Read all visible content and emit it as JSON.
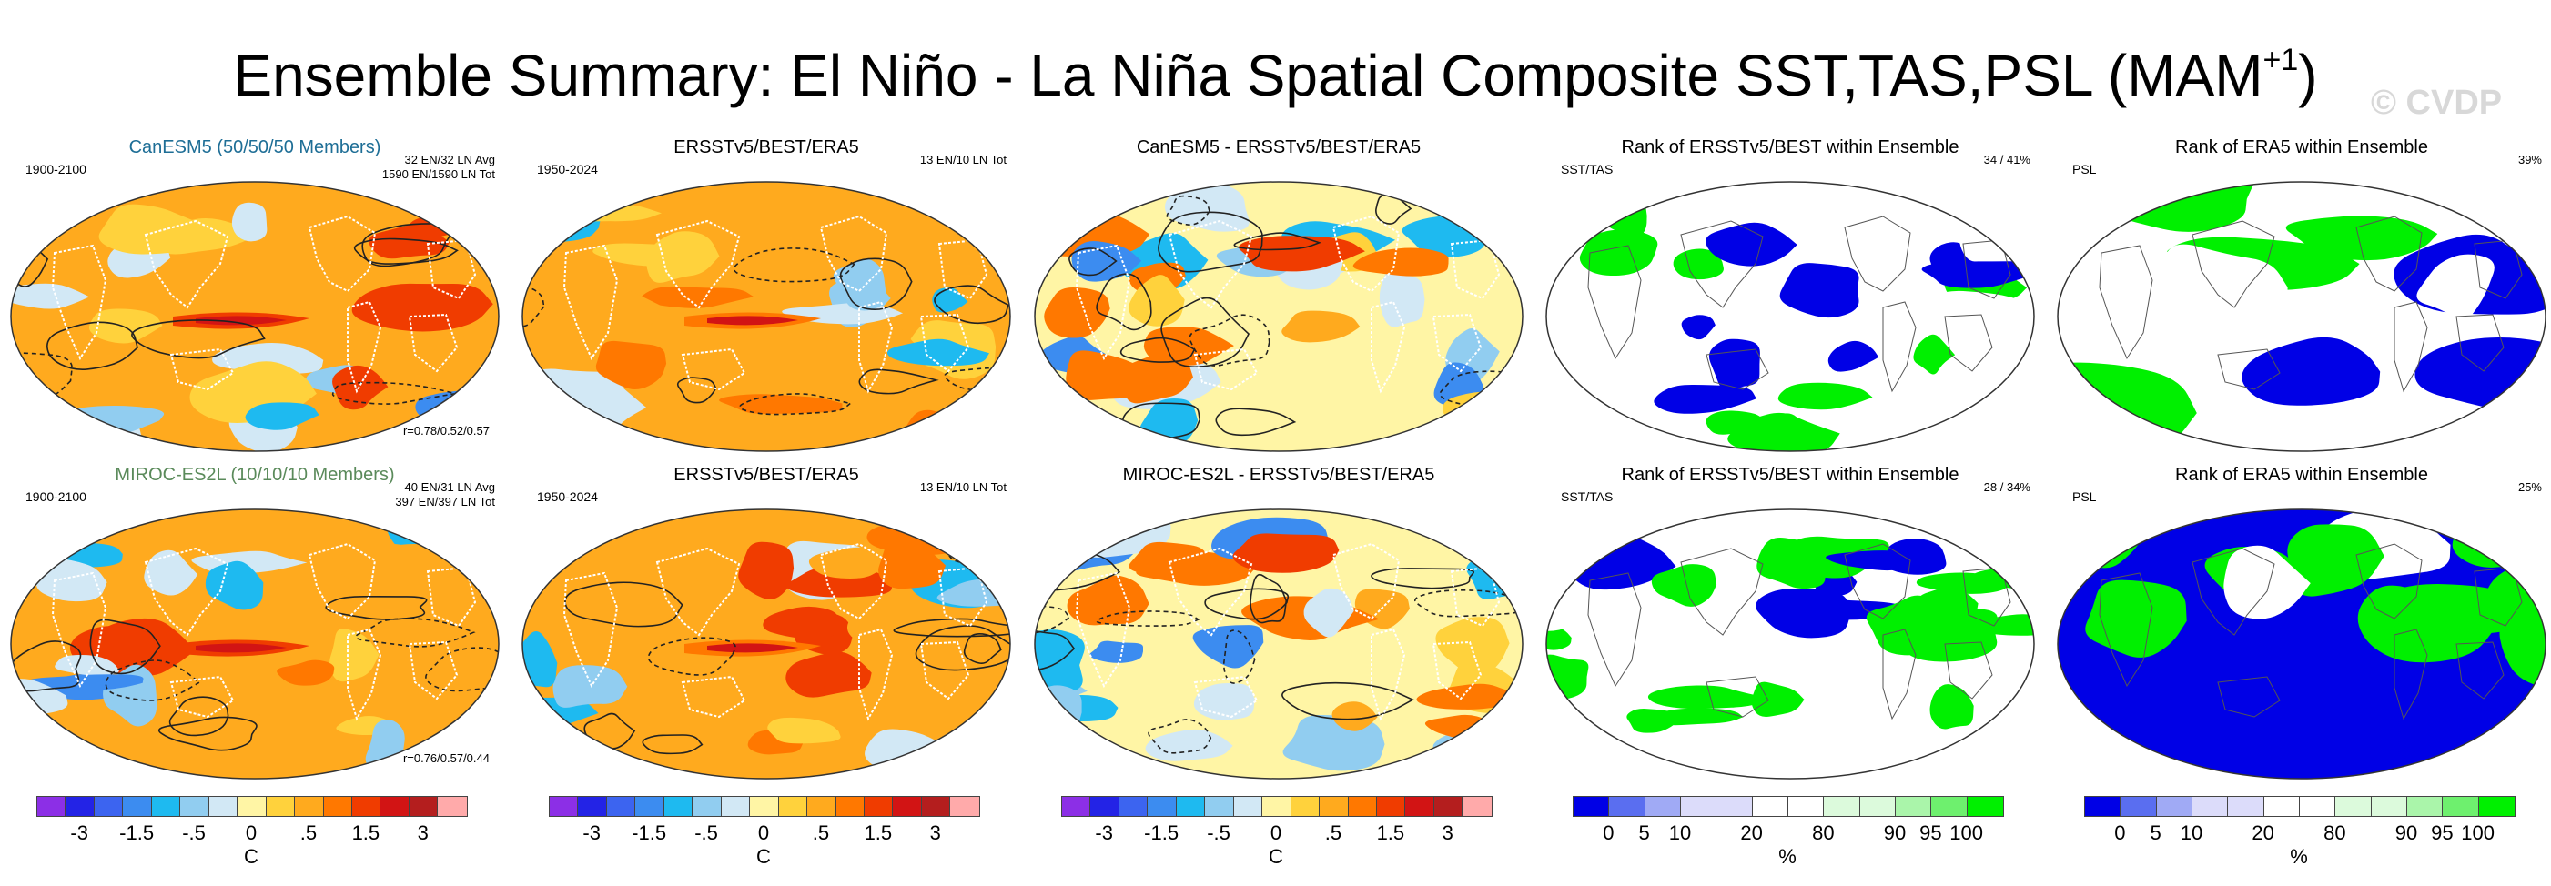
{
  "title": "Ensemble Summary: El Niño - La Niña Spatial Composite SST,TAS,PSL (MAM",
  "title_sup": "+1",
  "title_close": ")",
  "watermark": "© CVDP",
  "colors": {
    "model1_title": "#1e6e96",
    "model2_title": "#5a8a5a",
    "rank_low": "#0000e6",
    "rank_high": "#00f000",
    "land_outline": "#ffffff"
  },
  "rows": [
    {
      "panels": [
        {
          "title": "CanESM5 (50/50/50 Members)",
          "title_color": "#1e6e96",
          "left_text": "1900-2100",
          "right_lines": [
            "32 EN/32 LN Avg",
            "1590 EN/1590 LN Tot"
          ],
          "bottom_right": "r=0.78/0.52/0.57",
          "map_type": "anomaly",
          "palette": "model"
        },
        {
          "title": "ERSSTv5/BEST/ERA5",
          "left_text": "1950-2024",
          "right_lines": [
            "13 EN/10 LN Tot"
          ],
          "map_type": "anomaly",
          "palette": "obs"
        },
        {
          "title": "CanESM5 - ERSSTv5/BEST/ERA5",
          "map_type": "anomaly",
          "palette": "diff"
        },
        {
          "title": "Rank of ERSSTv5/BEST within Ensemble",
          "left_text": "SST/TAS",
          "right_lines": [
            "34 /  41%"
          ],
          "map_type": "rank",
          "palette": "rank_a"
        },
        {
          "title": "Rank of ERA5 within Ensemble",
          "left_text": "PSL",
          "right_lines": [
            "39%"
          ],
          "map_type": "rank",
          "palette": "rank_b"
        }
      ]
    },
    {
      "panels": [
        {
          "title": "MIROC-ES2L (10/10/10 Members)",
          "title_color": "#5a8a5a",
          "left_text": "1900-2100",
          "right_lines": [
            "40 EN/31 LN Avg",
            "397 EN/397 LN Tot"
          ],
          "bottom_right": "r=0.76/0.57/0.44",
          "map_type": "anomaly",
          "palette": "model2"
        },
        {
          "title": "ERSSTv5/BEST/ERA5",
          "left_text": "1950-2024",
          "right_lines": [
            "13 EN/10 LN Tot"
          ],
          "map_type": "anomaly",
          "palette": "obs"
        },
        {
          "title": "MIROC-ES2L - ERSSTv5/BEST/ERA5",
          "map_type": "anomaly",
          "palette": "diff2"
        },
        {
          "title": "Rank of ERSSTv5/BEST within Ensemble",
          "left_text": "SST/TAS",
          "right_lines": [
            "28 /  34%"
          ],
          "map_type": "rank",
          "palette": "rank_c"
        },
        {
          "title": "Rank of ERA5 within Ensemble",
          "left_text": "PSL",
          "right_lines": [
            "25%"
          ],
          "map_type": "rank",
          "palette": "rank_d"
        }
      ]
    }
  ],
  "colorbars": {
    "anomaly": {
      "colors": [
        "#8c2fe6",
        "#2323e6",
        "#3c64f0",
        "#3c8cf0",
        "#1ebaf0",
        "#91cdf0",
        "#d2e8f5",
        "#fff5a5",
        "#ffd23c",
        "#ffaa1e",
        "#ff7800",
        "#f03c00",
        "#d21414",
        "#b41e1e",
        "#ffaaaa"
      ],
      "ticks": [
        {
          "label": "-3",
          "pos": 1.5
        },
        {
          "label": "-1.5",
          "pos": 3.5
        },
        {
          "label": "-.5",
          "pos": 5.5
        },
        {
          "label": "0",
          "pos": 7.5
        },
        {
          "label": ".5",
          "pos": 9.5
        },
        {
          "label": "1.5",
          "pos": 11.5
        },
        {
          "label": "3",
          "pos": 13.5
        }
      ],
      "unit": "C"
    },
    "rank": {
      "colors": [
        "#0000e6",
        "#5a6ef0",
        "#a0aaf5",
        "#dcdcfa",
        "#dcdcfa",
        "#ffffff",
        "#ffffff",
        "#dcfadc",
        "#dcfadc",
        "#aaf5aa",
        "#6ef06e",
        "#00f000"
      ],
      "ticks": [
        {
          "label": "0",
          "pos": 1
        },
        {
          "label": "5",
          "pos": 2
        },
        {
          "label": "10",
          "pos": 3
        },
        {
          "label": "20",
          "pos": 5
        },
        {
          "label": "80",
          "pos": 7
        },
        {
          "label": "90",
          "pos": 9
        },
        {
          "label": "95",
          "pos": 10
        },
        {
          "label": "100",
          "pos": 11
        }
      ],
      "unit": "%"
    }
  }
}
